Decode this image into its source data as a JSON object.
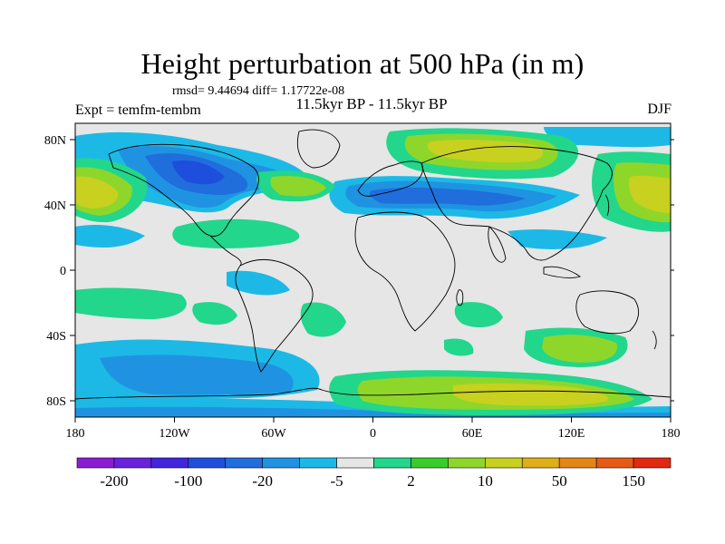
{
  "title": "Height perturbation at 500 hPa (in m)",
  "stats": "rmsd= 9.44694 diff= 1.17722e-08",
  "period": "11.5kyr BP - 11.5kyr BP",
  "experiment": "Expt = temfm-tembm",
  "season": "DJF",
  "lat_labels": [
    "80N",
    "40N",
    "0",
    "40S",
    "80S"
  ],
  "lon_labels": [
    "180",
    "120W",
    "60W",
    "0",
    "60E",
    "120E",
    "180"
  ],
  "colorbar": {
    "colors": [
      "#8c1cd2",
      "#6a21dc",
      "#4226de",
      "#1e4fdc",
      "#1f6edc",
      "#1f93e1",
      "#1db9e6",
      "#e6e6e6",
      "#22d68c",
      "#39cc2b",
      "#8fd62b",
      "#c8d020",
      "#e0ae18",
      "#e48516",
      "#e65a14",
      "#e22910"
    ],
    "labels": [
      "-200",
      "-100",
      "-20",
      "-5",
      "2",
      "10",
      "50",
      "150"
    ]
  },
  "map_data": {
    "lat_range": [
      -90,
      90
    ],
    "lon_range": [
      -180,
      180
    ],
    "background_color": "#e6e6e6",
    "coastline_color": "#000000"
  }
}
